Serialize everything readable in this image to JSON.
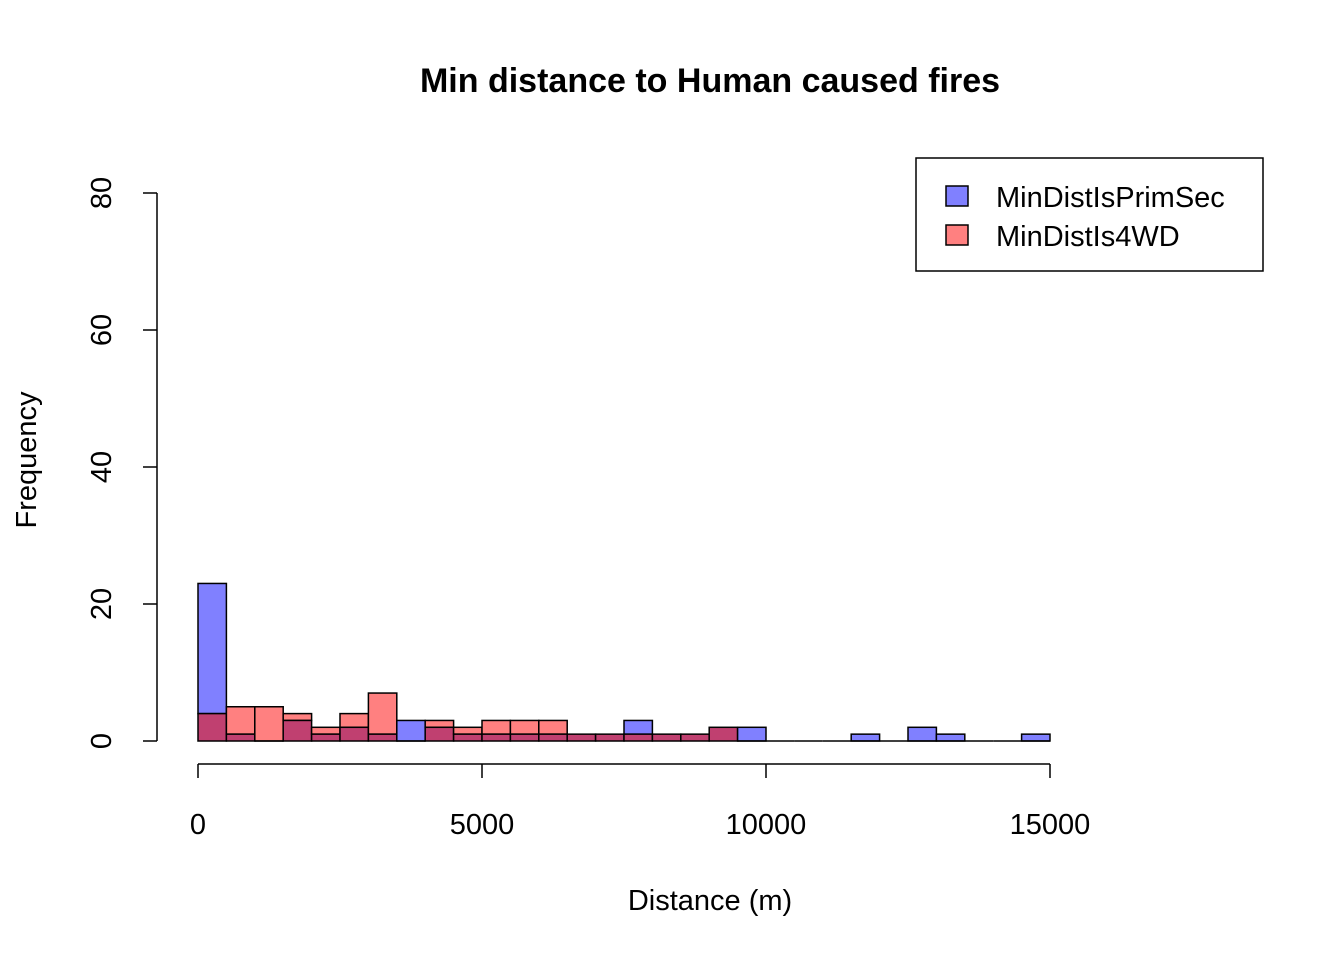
{
  "chart_data": {
    "type": "bar",
    "title": "Min distance to Human caused fires",
    "xlabel": "Distance (m)",
    "ylabel": "Frequency",
    "xlim": [
      0,
      15000
    ],
    "ylim": [
      0,
      80
    ],
    "x_ticks": [
      0,
      5000,
      10000,
      15000
    ],
    "y_ticks": [
      0,
      20,
      40,
      60,
      80
    ],
    "bin_width": 500,
    "bin_starts": [
      0,
      500,
      1000,
      1500,
      2000,
      2500,
      3000,
      3500,
      4000,
      4500,
      5000,
      5500,
      6000,
      6500,
      7000,
      7500,
      8000,
      8500,
      9000,
      9500,
      10000,
      10500,
      11000,
      11500,
      12000,
      12500,
      13000,
      13500,
      14000,
      14500
    ],
    "series": [
      {
        "name": "MinDistIsPrimSec",
        "color": "#8080ff",
        "values": [
          23,
          1,
          0,
          3,
          1,
          2,
          1,
          3,
          2,
          1,
          1,
          1,
          1,
          1,
          1,
          3,
          1,
          1,
          2,
          2,
          0,
          0,
          0,
          1,
          0,
          2,
          1,
          0,
          0,
          1
        ]
      },
      {
        "name": "MinDistIs4WD",
        "color": "#ff8080",
        "values": [
          4,
          5,
          5,
          4,
          2,
          4,
          7,
          0,
          3,
          2,
          3,
          3,
          3,
          1,
          1,
          1,
          1,
          1,
          2,
          0,
          0,
          0,
          0,
          0,
          0,
          0,
          0,
          0,
          0,
          0
        ]
      }
    ],
    "overlap_color": "#c04070",
    "legend_position": "top-right",
    "grid": false
  }
}
